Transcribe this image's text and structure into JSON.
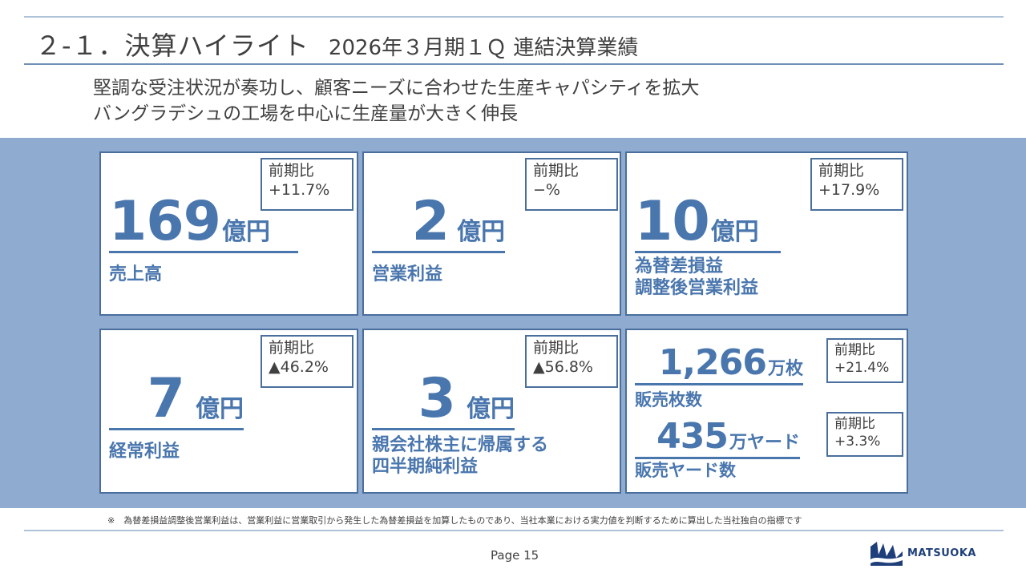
{
  "header": {
    "title": "２‐１．決算ハイライト",
    "subtitle": "2026年３月期１Ｑ 連結決算業績"
  },
  "lead": {
    "line1": "堅調な受注状況が奏功し、顧客ニーズに合わせた生産キャパシティを拡大",
    "line2": "バングラデシュの工場を中心に生産量が大きく伸長"
  },
  "cards": {
    "sales": {
      "value": "169",
      "unit": "億円",
      "label": "売上高",
      "cmp_label": "前期比",
      "cmp_value": "+11.7%"
    },
    "operating": {
      "value": "2",
      "unit": "億円",
      "label": "営業利益",
      "cmp_label": "前期比",
      "cmp_value": "−%"
    },
    "adjusted": {
      "value": "10",
      "unit": "億円",
      "label1": "為替差損益",
      "label2": "調整後営業利益",
      "cmp_label": "前期比",
      "cmp_value": "+17.9%"
    },
    "ordinary": {
      "value": "7",
      "unit": "億円",
      "label": "経常利益",
      "cmp_label": "前期比",
      "cmp_value": "▲46.2%"
    },
    "net": {
      "value": "3",
      "unit": "億円",
      "label1": "親会社株主に帰属する",
      "label2": "四半期純利益",
      "cmp_label": "前期比",
      "cmp_value": "▲56.8%"
    },
    "volume": {
      "sheets_value": "1,266",
      "sheets_unit": "万枚",
      "sheets_label": "販売枚数",
      "sheets_cmp_label": "前期比",
      "sheets_cmp_value": "+21.4%",
      "yards_value": "435",
      "yards_unit": "万ヤード",
      "yards_label": "販売ヤード数",
      "yards_cmp_label": "前期比",
      "yards_cmp_value": "+3.3%"
    }
  },
  "footer": {
    "note": "※　為替差損益調整後営業利益は、営業利益に営業取引から発生した為替差損益を加算したものであり、当社本業における実力値を判断するために算出した当社独自の指標です",
    "page": "Page 15",
    "logo_text": "MATSUOKA"
  },
  "colors": {
    "accent": "#4a76ae",
    "border": "#4a6f9c",
    "band": "#8fabd0"
  }
}
